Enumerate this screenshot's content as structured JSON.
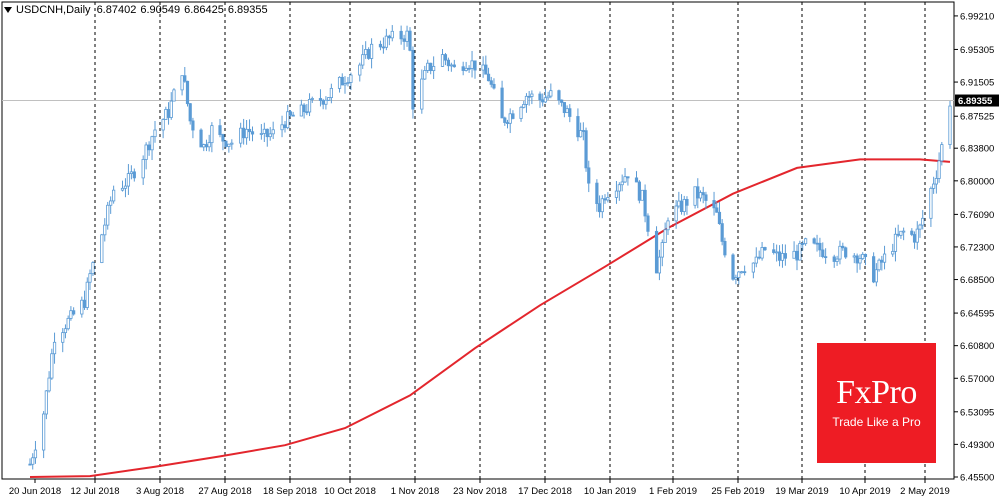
{
  "header": {
    "symbol": "USDCNH,Daily",
    "open": "6.87402",
    "high": "6.90549",
    "low": "6.86425",
    "close": "6.89355"
  },
  "logo": {
    "brand": "FxPro",
    "tagline": "Trade Like a Pro"
  },
  "colors": {
    "candle": "#5b9bd5",
    "ma": "#e3262d",
    "grid": "#000000",
    "bg": "#ffffff",
    "logo_bg": "#ee1c24"
  },
  "chart_data": {
    "type": "candlestick",
    "title": "USDCNH,Daily",
    "xlabel": "",
    "ylabel": "",
    "ylim": [
      6.455,
      6.992
    ],
    "y_ticks": [
      "6.99210",
      "6.95305",
      "6.91505",
      "6.87525",
      "6.83800",
      "6.80000",
      "6.76090",
      "6.72300",
      "6.68500",
      "6.64595",
      "6.60800",
      "6.57000",
      "6.53095",
      "6.49300",
      "6.45500"
    ],
    "current_price": 6.89355,
    "current_price_label": "6.89355",
    "x_tick_labels": [
      "20 Jun 2018",
      "12 Jul 2018",
      "3 Aug 2018",
      "27 Aug 2018",
      "18 Sep 2018",
      "10 Oct 2018",
      "1 Nov 2018",
      "23 Nov 2018",
      "17 Dec 2018",
      "10 Jan 2019",
      "1 Feb 2019",
      "25 Feb 2019",
      "19 Mar 2019",
      "10 Apr 2019",
      "2 May 2019"
    ],
    "period_separators_at_labels": [
      "12 Jul 2018",
      "3 Aug 2018",
      "27 Aug 2018",
      "18 Sep 2018",
      "10 Oct 2018",
      "1 Nov 2018",
      "23 Nov 2018",
      "17 Dec 2018",
      "10 Jan 2019",
      "1 Feb 2019",
      "25 Feb 2019",
      "19 Mar 2019",
      "10 Apr 2019",
      "2 May 2019"
    ],
    "close_path": [
      {
        "date": "20 Jun 2018",
        "close": 6.47
      },
      {
        "date": "25 Jun 2018",
        "close": 6.53
      },
      {
        "date": "29 Jun 2018",
        "close": 6.62
      },
      {
        "date": "5 Jul 2018",
        "close": 6.64
      },
      {
        "date": "10 Jul 2018",
        "close": 6.66
      },
      {
        "date": "12 Jul 2018",
        "close": 6.69
      },
      {
        "date": "17 Jul 2018",
        "close": 6.75
      },
      {
        "date": "20 Jul 2018",
        "close": 6.79
      },
      {
        "date": "25 Jul 2018",
        "close": 6.8
      },
      {
        "date": "30 Jul 2018",
        "close": 6.83
      },
      {
        "date": "3 Aug 2018",
        "close": 6.86
      },
      {
        "date": "8 Aug 2018",
        "close": 6.88
      },
      {
        "date": "13 Aug 2018",
        "close": 6.93
      },
      {
        "date": "16 Aug 2018",
        "close": 6.87
      },
      {
        "date": "21 Aug 2018",
        "close": 6.84
      },
      {
        "date": "24 Aug 2018",
        "close": 6.86
      },
      {
        "date": "27 Aug 2018",
        "close": 6.85
      },
      {
        "date": "31 Aug 2018",
        "close": 6.845
      },
      {
        "date": "5 Sep 2018",
        "close": 6.86
      },
      {
        "date": "10 Sep 2018",
        "close": 6.85
      },
      {
        "date": "14 Sep 2018",
        "close": 6.855
      },
      {
        "date": "18 Sep 2018",
        "close": 6.87
      },
      {
        "date": "24 Sep 2018",
        "close": 6.88
      },
      {
        "date": "28 Sep 2018",
        "close": 6.89
      },
      {
        "date": "4 Oct 2018",
        "close": 6.9
      },
      {
        "date": "10 Oct 2018",
        "close": 6.92
      },
      {
        "date": "15 Oct 2018",
        "close": 6.935
      },
      {
        "date": "19 Oct 2018",
        "close": 6.955
      },
      {
        "date": "25 Oct 2018",
        "close": 6.965
      },
      {
        "date": "31 Oct 2018",
        "close": 6.97
      },
      {
        "date": "1 Nov 2018",
        "close": 6.95
      },
      {
        "date": "2 Nov 2018",
        "close": 6.89
      },
      {
        "date": "7 Nov 2018",
        "close": 6.93
      },
      {
        "date": "12 Nov 2018",
        "close": 6.945
      },
      {
        "date": "16 Nov 2018",
        "close": 6.93
      },
      {
        "date": "20 Nov 2018",
        "close": 6.94
      },
      {
        "date": "23 Nov 2018",
        "close": 6.935
      },
      {
        "date": "28 Nov 2018",
        "close": 6.92
      },
      {
        "date": "3 Dec 2018",
        "close": 6.87
      },
      {
        "date": "7 Dec 2018",
        "close": 6.88
      },
      {
        "date": "12 Dec 2018",
        "close": 6.9
      },
      {
        "date": "17 Dec 2018",
        "close": 6.895
      },
      {
        "date": "21 Dec 2018",
        "close": 6.9
      },
      {
        "date": "27 Dec 2018",
        "close": 6.88
      },
      {
        "date": "2 Jan 2019",
        "close": 6.85
      },
      {
        "date": "4 Jan 2019",
        "close": 6.79
      },
      {
        "date": "8 Jan 2019",
        "close": 6.77
      },
      {
        "date": "10 Jan 2019",
        "close": 6.785
      },
      {
        "date": "15 Jan 2019",
        "close": 6.8
      },
      {
        "date": "18 Jan 2019",
        "close": 6.81
      },
      {
        "date": "23 Jan 2019",
        "close": 6.78
      },
      {
        "date": "28 Jan 2019",
        "close": 6.7
      },
      {
        "date": "30 Jan 2019",
        "close": 6.72
      },
      {
        "date": "1 Feb 2019",
        "close": 6.76
      },
      {
        "date": "6 Feb 2019",
        "close": 6.77
      },
      {
        "date": "11 Feb 2019",
        "close": 6.785
      },
      {
        "date": "14 Feb 2019",
        "close": 6.78
      },
      {
        "date": "19 Feb 2019",
        "close": 6.76
      },
      {
        "date": "21 Feb 2019",
        "close": 6.73
      },
      {
        "date": "25 Feb 2019",
        "close": 6.69
      },
      {
        "date": "28 Feb 2019",
        "close": 6.7
      },
      {
        "date": "5 Mar 2019",
        "close": 6.705
      },
      {
        "date": "8 Mar 2019",
        "close": 6.72
      },
      {
        "date": "13 Mar 2019",
        "close": 6.71
      },
      {
        "date": "19 Mar 2019",
        "close": 6.715
      },
      {
        "date": "22 Mar 2019",
        "close": 6.725
      },
      {
        "date": "27 Mar 2019",
        "close": 6.72
      },
      {
        "date": "1 Apr 2019",
        "close": 6.715
      },
      {
        "date": "5 Apr 2019",
        "close": 6.718
      },
      {
        "date": "10 Apr 2019",
        "close": 6.712
      },
      {
        "date": "15 Apr 2019",
        "close": 6.69
      },
      {
        "date": "18 Apr 2019",
        "close": 6.705
      },
      {
        "date": "23 Apr 2019",
        "close": 6.73
      },
      {
        "date": "26 Apr 2019",
        "close": 6.74
      },
      {
        "date": "30 Apr 2019",
        "close": 6.735
      },
      {
        "date": "2 May 2019",
        "close": 6.745
      },
      {
        "date": "6 May 2019",
        "close": 6.79
      },
      {
        "date": "8 May 2019",
        "close": 6.81
      },
      {
        "date": "10 May 2019",
        "close": 6.84
      },
      {
        "date": "13 May 2019",
        "close": 6.893
      }
    ],
    "moving_average": {
      "name": "",
      "points": [
        {
          "date": "20 Jun 2018",
          "value": 6.455
        },
        {
          "date": "12 Jul 2018",
          "value": 6.456
        },
        {
          "date": "3 Aug 2018",
          "value": 6.467
        },
        {
          "date": "27 Aug 2018",
          "value": 6.479
        },
        {
          "date": "18 Sep 2018",
          "value": 6.492
        },
        {
          "date": "10 Oct 2018",
          "value": 6.512
        },
        {
          "date": "1 Nov 2018",
          "value": 6.55
        },
        {
          "date": "23 Nov 2018",
          "value": 6.605
        },
        {
          "date": "17 Dec 2018",
          "value": 6.655
        },
        {
          "date": "10 Jan 2019",
          "value": 6.7
        },
        {
          "date": "1 Feb 2019",
          "value": 6.745
        },
        {
          "date": "25 Feb 2019",
          "value": 6.785
        },
        {
          "date": "19 Mar 2019",
          "value": 6.815
        },
        {
          "date": "10 Apr 2019",
          "value": 6.825
        },
        {
          "date": "2 May 2019",
          "value": 6.825
        },
        {
          "date": "13 May 2019",
          "value": 6.822
        }
      ]
    }
  }
}
